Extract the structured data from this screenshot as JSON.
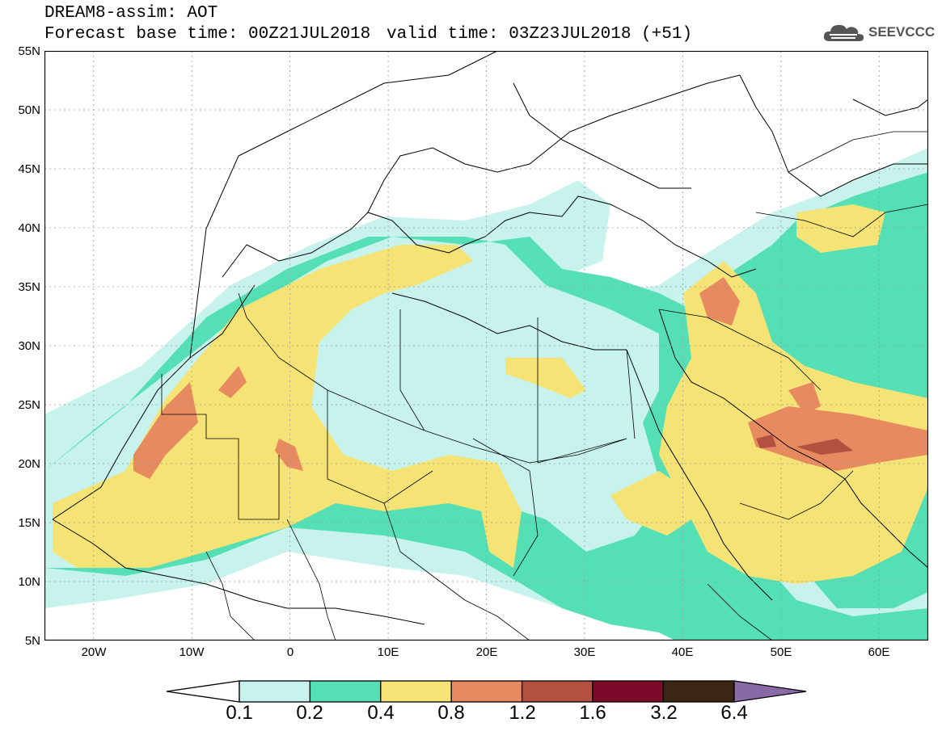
{
  "header": {
    "line1": "DREAM8-assim: AOT",
    "line2": "Forecast base time: 00Z21JUL2018",
    "valid": "valid time: 03Z23JUL2018 (+51)"
  },
  "logo": {
    "text": "SEEVCCC",
    "icon": "cloud-icon"
  },
  "map": {
    "lat_labels": [
      "55N",
      "50N",
      "45N",
      "40N",
      "35N",
      "30N",
      "25N",
      "20N",
      "15N",
      "10N",
      "5N"
    ],
    "lon_labels": [
      "20W",
      "10W",
      "0",
      "10E",
      "20E",
      "30E",
      "40E",
      "50E",
      "60E"
    ],
    "extent": {
      "lon_min": -25,
      "lon_max": 65,
      "lat_min": 5,
      "lat_max": 55
    },
    "field": "Aerosol optical thickness (dust)"
  },
  "colorbar": {
    "levels": [
      "0.1",
      "0.2",
      "0.4",
      "0.8",
      "1.2",
      "1.6",
      "3.2",
      "6.4"
    ],
    "colors": [
      "#c8f3ec",
      "#55dfb5",
      "#f5e376",
      "#e88a5f",
      "#b45040",
      "#7c0a2a",
      "#3b2616",
      "#8a6aa6"
    ],
    "below_color": "#ffffff"
  }
}
